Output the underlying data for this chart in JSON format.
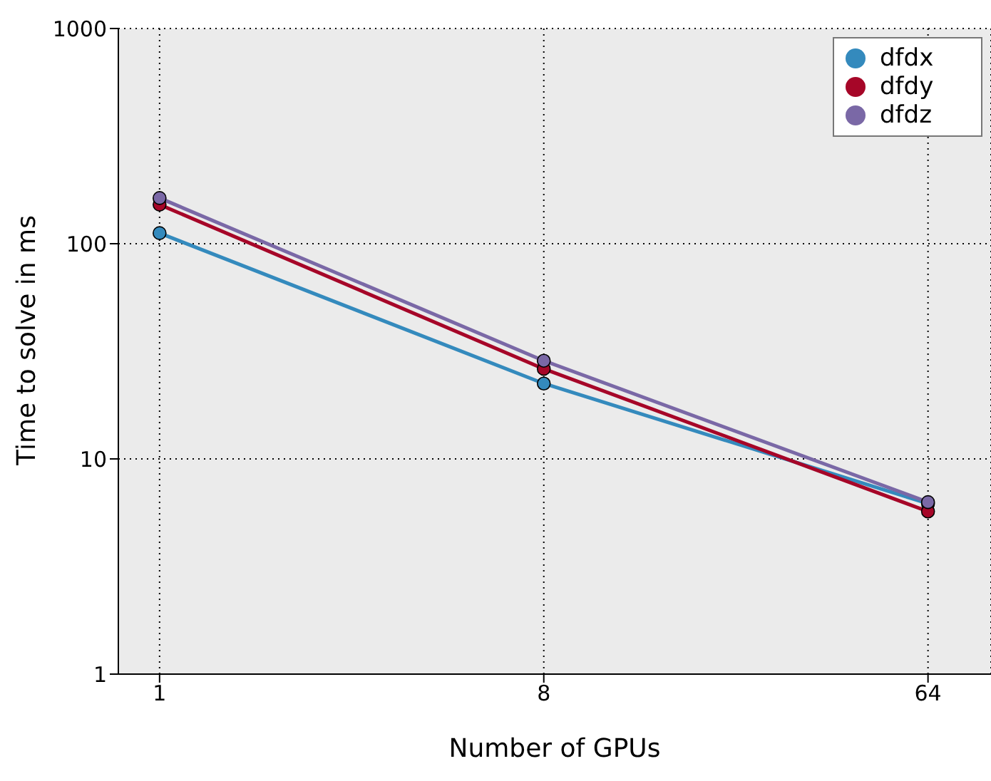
{
  "chart_data": {
    "type": "line",
    "xlabel": "Number of GPUs",
    "ylabel": "Time to solve in ms",
    "x": [
      1,
      8,
      64
    ],
    "series": [
      {
        "name": "dfdx",
        "color": "#348abd",
        "values": [
          112,
          22.4,
          6.2
        ]
      },
      {
        "name": "dfdy",
        "color": "#a60628",
        "values": [
          152,
          26.2,
          5.7
        ]
      },
      {
        "name": "dfdz",
        "color": "#7a68a6",
        "values": [
          163,
          28.6,
          6.3
        ]
      }
    ],
    "xlim": [
      0.8,
      90
    ],
    "xticks": [
      1,
      8,
      64
    ],
    "ylim": [
      1,
      1000
    ],
    "yticks": [
      1,
      10,
      100,
      1000
    ],
    "log": "xy",
    "grid": true,
    "legend": "top right",
    "marker": "circle",
    "line_style": "solid"
  }
}
